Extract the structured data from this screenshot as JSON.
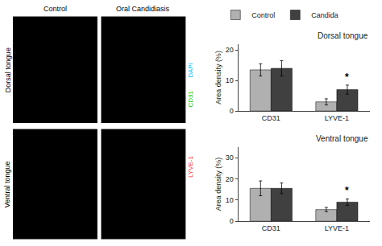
{
  "chart_data": [
    {
      "type": "image",
      "x": [
        "Control",
        "Oral Candidiasis"
      ],
      "y": [
        "Dorsal tongue",
        "Ventral tongue"
      ],
      "color": "#000000",
      "annotations": [
        {
          "text": "DAPI",
          "color": "#00bfff"
        },
        {
          "text": "CD31",
          "color": "#00cc00"
        },
        {
          "text": "LYVE-1",
          "color": "#ff3333"
        }
      ]
    },
    {
      "type": "bar",
      "title": "Dorsal tongue",
      "categories": [
        "CD31",
        "LYVE-1"
      ],
      "series": [
        {
          "name": "Control",
          "color": "#b0b0b0",
          "values": [
            13.5,
            3.0
          ],
          "errors": [
            2.0,
            1.0
          ]
        },
        {
          "name": "Candida",
          "color": "#404040",
          "values": [
            14.0,
            7.0
          ],
          "errors": [
            2.5,
            1.5
          ]
        }
      ],
      "ylabel": "Area density (%)",
      "ylim": [
        0,
        22
      ],
      "yticks": [
        0,
        10,
        20
      ],
      "grid": false,
      "legend": "upper left",
      "annotations": [
        {
          "text": "*",
          "x": 1,
          "series": "Candida"
        }
      ]
    },
    {
      "type": "bar",
      "title": "Ventral tongue",
      "categories": [
        "CD31",
        "LYVE-1"
      ],
      "series": [
        {
          "name": "Control",
          "color": "#b0b0b0",
          "values": [
            15.5,
            5.5
          ],
          "errors": [
            3.5,
            1.0
          ]
        },
        {
          "name": "Candida",
          "color": "#404040",
          "values": [
            15.5,
            9.0
          ],
          "errors": [
            2.5,
            1.5
          ]
        }
      ],
      "ylabel": "Area density (%)",
      "ylim": [
        0,
        35
      ],
      "yticks": [
        0,
        10,
        20,
        30
      ],
      "grid": false,
      "annotations": [
        {
          "text": "*",
          "x": 1,
          "series": "Candida"
        }
      ]
    }
  ]
}
